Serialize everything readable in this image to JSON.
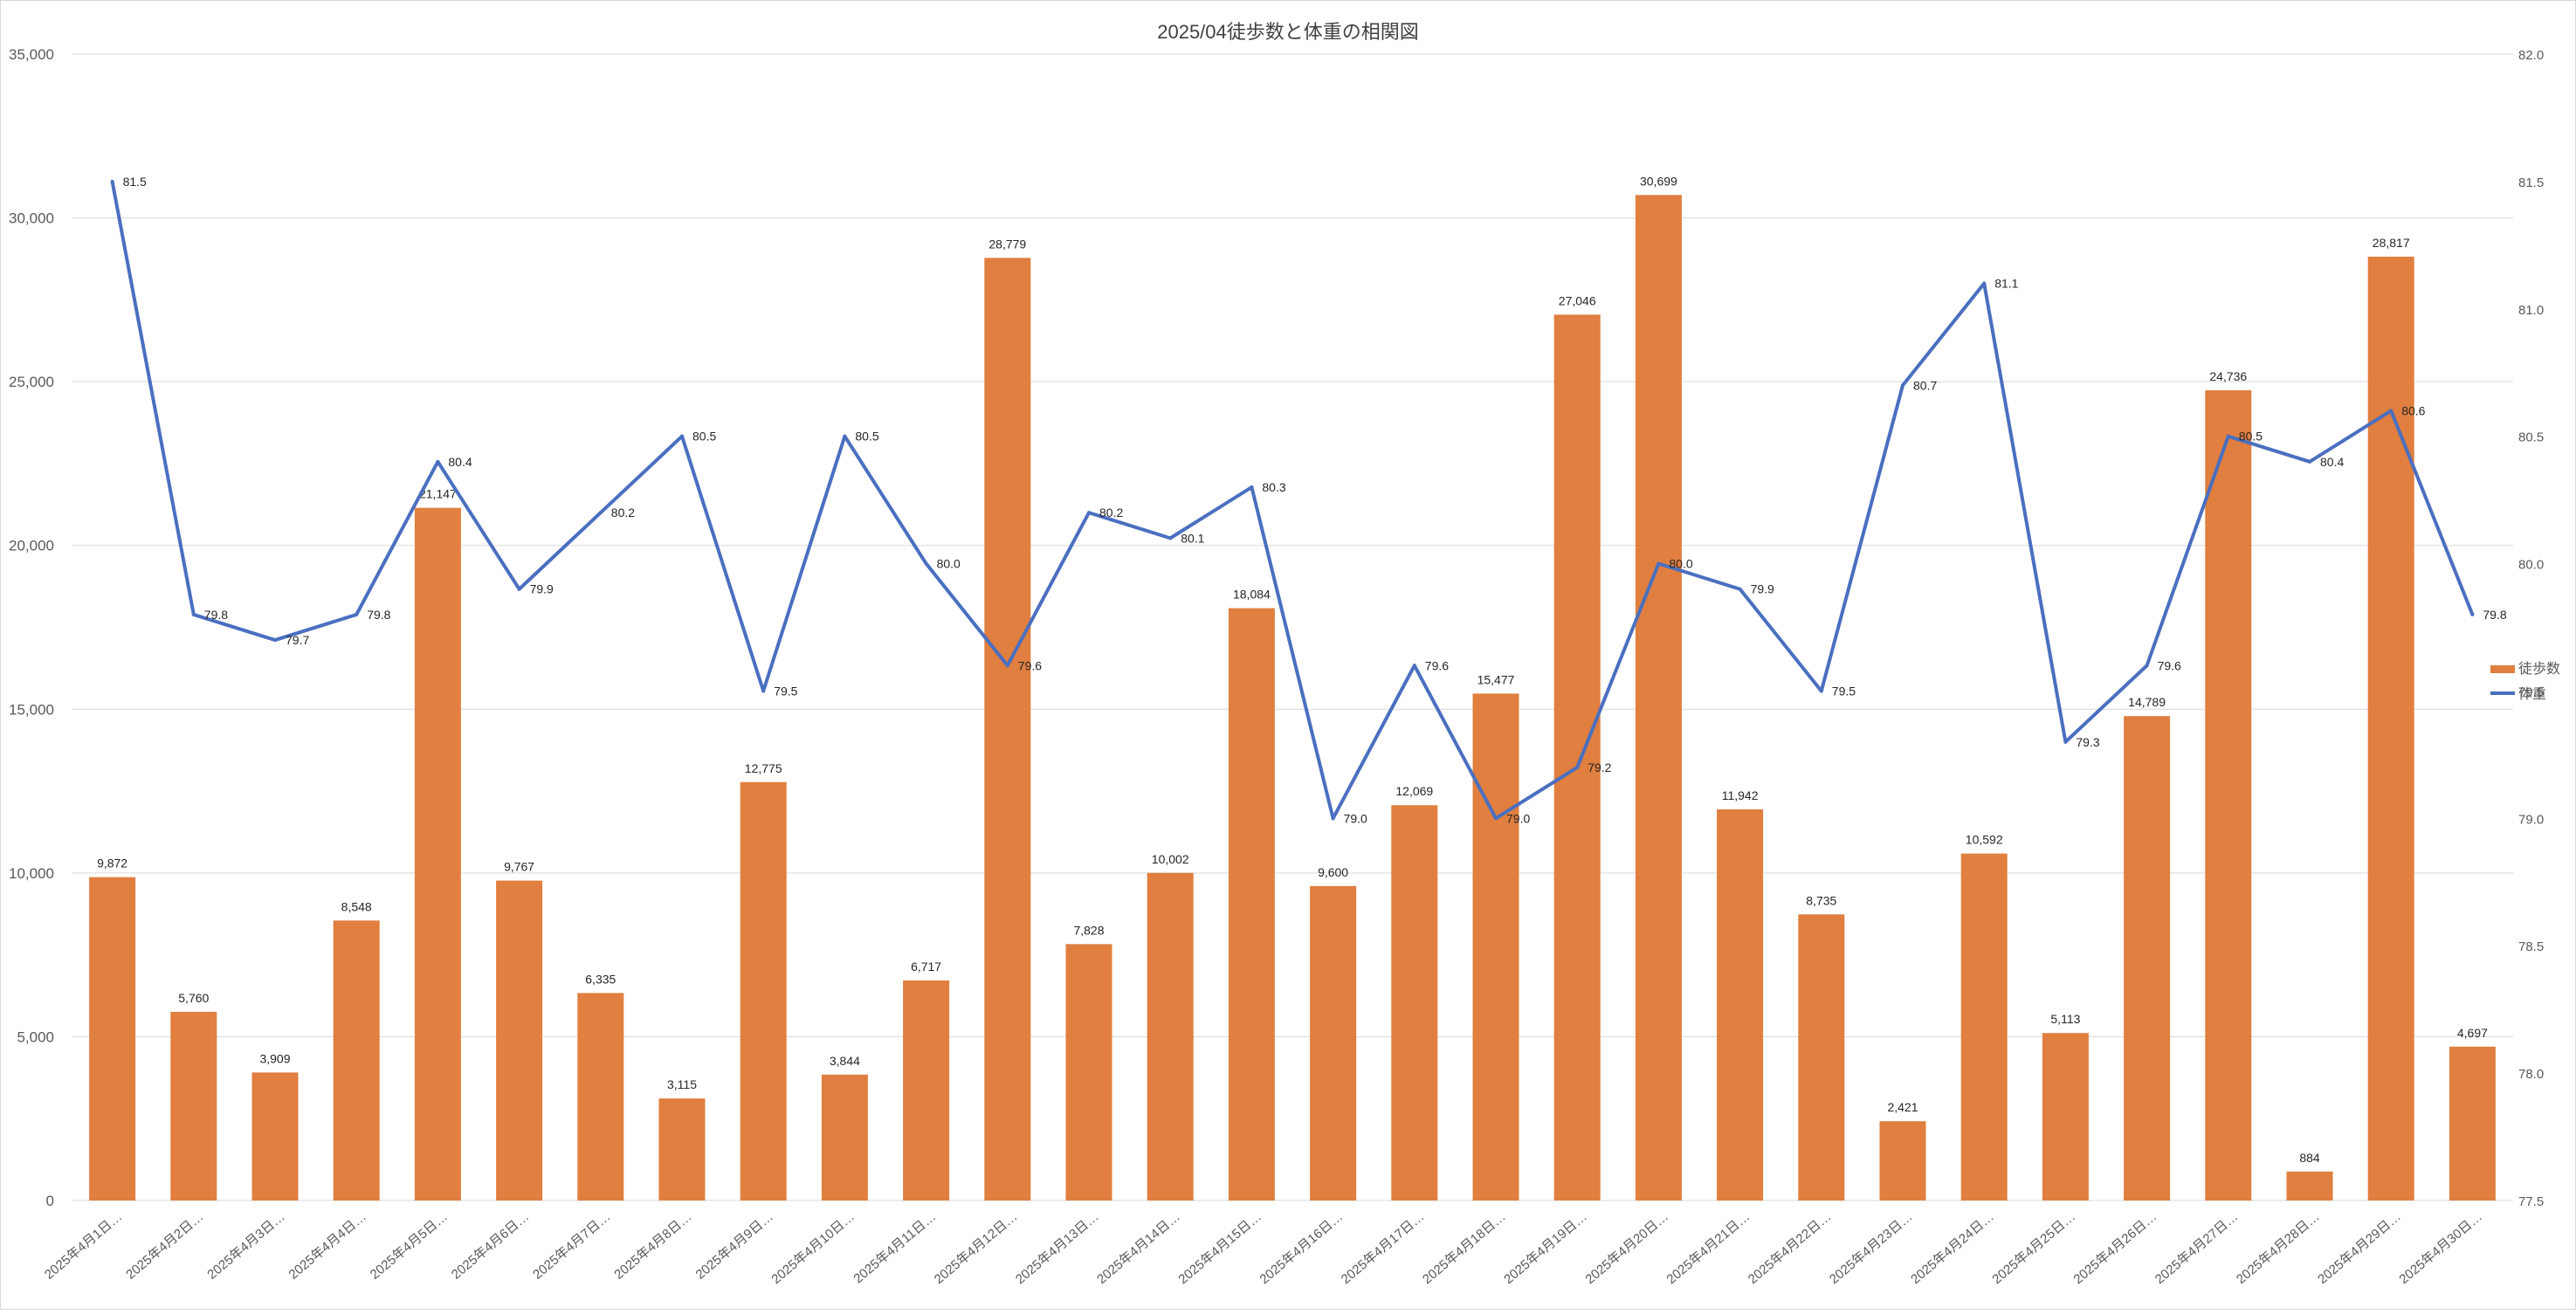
{
  "chart_data": {
    "type": "bar+line",
    "title": "2025/04徒歩数と体重の相関図",
    "categories": [
      "2025年4月1日…",
      "2025年4月2日…",
      "2025年4月3日…",
      "2025年4月4日…",
      "2025年4月5日…",
      "2025年4月6日…",
      "2025年4月7日…",
      "2025年4月8日…",
      "2025年4月9日…",
      "2025年4月10日…",
      "2025年4月11日…",
      "2025年4月12日…",
      "2025年4月13日…",
      "2025年4月14日…",
      "2025年4月15日…",
      "2025年4月16日…",
      "2025年4月17日…",
      "2025年4月18日…",
      "2025年4月19日…",
      "2025年4月20日…",
      "2025年4月21日…",
      "2025年4月22日…",
      "2025年4月23日…",
      "2025年4月24日…",
      "2025年4月25日…",
      "2025年4月26日…",
      "2025年4月27日…",
      "2025年4月28日…",
      "2025年4月29日…",
      "2025年4月30日…"
    ],
    "series": [
      {
        "name": "徒歩数",
        "type": "bar",
        "axis": "left",
        "color": "#e07f3f",
        "values": [
          9872,
          5760,
          3909,
          8548,
          21147,
          9767,
          6335,
          3115,
          12775,
          3844,
          6717,
          28779,
          7828,
          10002,
          18084,
          9600,
          12069,
          15477,
          27046,
          30699,
          11942,
          8735,
          2421,
          10592,
          5113,
          14789,
          24736,
          884,
          28817,
          4697
        ],
        "labels": [
          "9,872",
          "5,760",
          "3,909",
          "8,548",
          "21,147",
          "9,767",
          "6,335",
          "3,115",
          "12,775",
          "3,844",
          "6,717",
          "28,779",
          "7,828",
          "10,002",
          "18,084",
          "9,600",
          "12,069",
          "15,477",
          "27,046",
          "30,699",
          "11,942",
          "8,735",
          "2,421",
          "10,592",
          "5,113",
          "14,789",
          "24,736",
          "884",
          "28,817",
          "4,697"
        ]
      },
      {
        "name": "体重",
        "type": "line",
        "axis": "right",
        "color": "#4a6fc0",
        "values": [
          81.5,
          79.8,
          79.7,
          79.8,
          80.4,
          79.9,
          80.2,
          80.5,
          79.5,
          80.5,
          80.0,
          79.6,
          80.2,
          80.1,
          80.3,
          79.0,
          79.6,
          79.0,
          79.2,
          80.0,
          79.9,
          79.5,
          80.7,
          81.1,
          79.3,
          79.6,
          80.5,
          80.4,
          80.6,
          79.8
        ],
        "labels": [
          "81.5",
          "79.8",
          "79.7",
          "79.8",
          "80.4",
          "79.9",
          "80.2",
          "80.5",
          "79.5",
          "80.5",
          "80.0",
          "79.6",
          "80.2",
          "80.1",
          "80.3",
          "79.0",
          "79.6",
          "79.0",
          "79.2",
          "80.0",
          "79.9",
          "79.5",
          "80.7",
          "81.1",
          "79.3",
          "79.6",
          "80.5",
          "80.4",
          "80.6",
          "79.8"
        ]
      }
    ],
    "y_left": {
      "min": 0,
      "max": 35000,
      "ticks": [
        "0",
        "5,000",
        "10,000",
        "15,000",
        "20,000",
        "25,000",
        "30,000",
        "35,000"
      ]
    },
    "y_right": {
      "min": 77.5,
      "max": 82.0,
      "ticks": [
        "77.5",
        "78.0",
        "78.5",
        "79.0",
        "79.5",
        "80.0",
        "80.5",
        "81.0",
        "81.5",
        "82.0"
      ]
    },
    "grid": true,
    "legend": {
      "placement": "right",
      "items": [
        "徒歩数",
        "体重"
      ]
    }
  }
}
